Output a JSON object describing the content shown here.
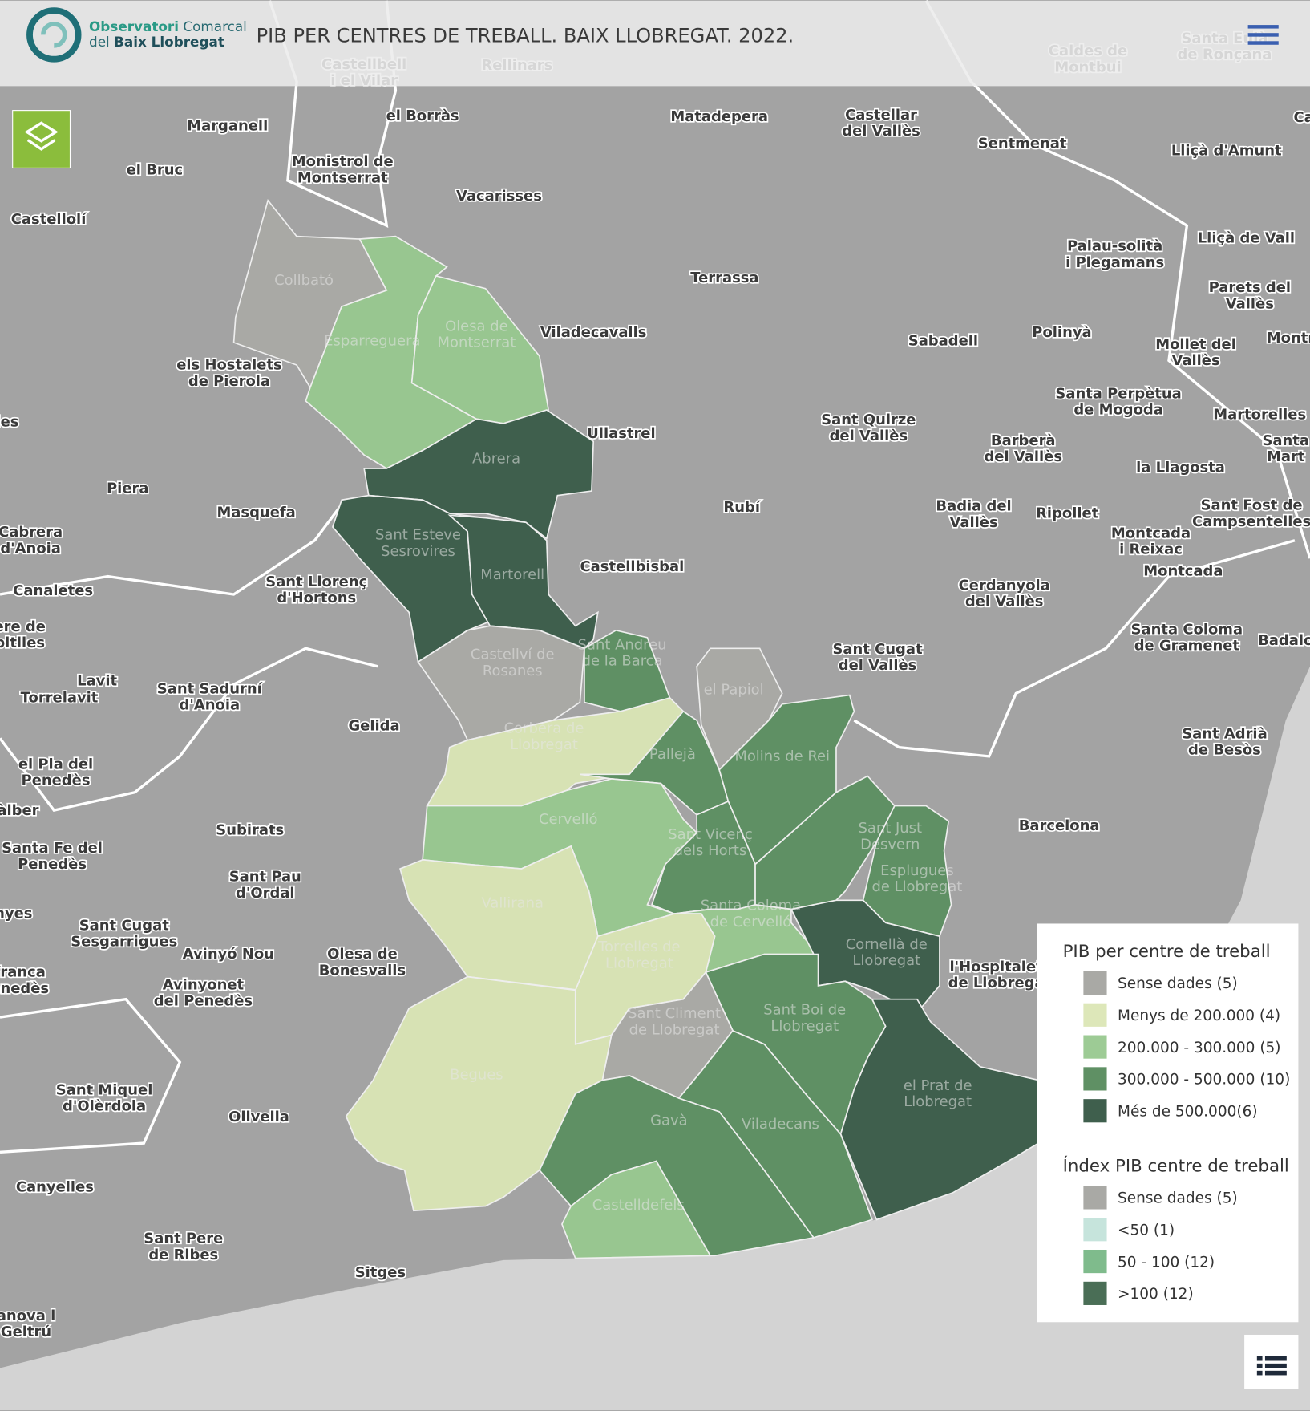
{
  "header": {
    "logo": {
      "line1": [
        "Observatori",
        "Comarcal"
      ],
      "line2": [
        "del",
        "Baix Llobregat"
      ]
    },
    "title": "PIB PER CENTRES DE TREBALL. BAIX LLOBREGAT. 2022."
  },
  "places": [
    [
      "Castellbell",
      "i el Vilar"
    ],
    [
      "Rellinars"
    ],
    [
      "Caldes de",
      "Montbui"
    ],
    [
      "Santa Eulà",
      "de Ronçana"
    ],
    [
      "Marganell"
    ],
    [
      "el Borràs"
    ],
    [
      "Matadepera"
    ],
    [
      "Castellar",
      "del Vallès"
    ],
    [
      "Sentmenat"
    ],
    [
      "Lliçà d'Amunt"
    ],
    [
      "el Bruc"
    ],
    [
      "Monistrol de",
      "Montserrat"
    ],
    [
      "Vacarisses"
    ],
    [
      "Castellolí"
    ],
    [
      "Lliçà de Vall"
    ],
    [
      "Palau-solità",
      "i Plegamans"
    ],
    [
      "Terrassa"
    ],
    [
      "Parets del",
      "Vallès"
    ],
    [
      "Viladecavalls"
    ],
    [
      "Sabadell"
    ],
    [
      "Polinyà"
    ],
    [
      "Mollet del",
      "Vallès"
    ],
    [
      "Montm"
    ],
    [
      "els Hostalets",
      "de Pierola"
    ],
    [
      "les"
    ],
    [
      "Santa Perpètua",
      "de Mogoda"
    ],
    [
      "Martorelles"
    ],
    [
      "Sant Quirze",
      "del Vallès"
    ],
    [
      "Ullastrel"
    ],
    [
      "Barberà",
      "del Vallès"
    ],
    [
      "Santa",
      "Mart"
    ],
    [
      "la Llagosta"
    ],
    [
      "Piera"
    ],
    [
      "Masquefa"
    ],
    [
      "Rubí"
    ],
    [
      "Badia del",
      "Vallès"
    ],
    [
      "Ripollet"
    ],
    [
      "Sant Fost de",
      "Campsentelles"
    ],
    [
      "Cabrera",
      "d'Anoia"
    ],
    [
      "Montcada",
      "i Reixac"
    ],
    [
      "Montcada"
    ],
    [
      "Castellbisbal"
    ],
    [
      "Canaletes"
    ],
    [
      "Sant Llorenç",
      "d'Hortons"
    ],
    [
      "Cerdanyola",
      "del Vallès"
    ],
    [
      "ere de",
      "bitlles"
    ],
    [
      "Santa Coloma",
      "de Gramenet"
    ],
    [
      "Badalo"
    ],
    [
      "Sant Cugat",
      "del Vallès"
    ],
    [
      "Lavit"
    ],
    [
      "Torrelavit"
    ],
    [
      "Sant Sadurní",
      "d'Anoia"
    ],
    [
      "Gelida"
    ],
    [
      "Sant Adrià",
      "de Besòs"
    ],
    [
      "el Pla del",
      "Penedès"
    ],
    [
      "àlber"
    ],
    [
      "Barcelona"
    ],
    [
      "Subirats"
    ],
    [
      "Santa Fe del",
      "Penedès"
    ],
    [
      "Sant Pau",
      "d'Ordal"
    ],
    [
      "nyes"
    ],
    [
      "Sant Cugat",
      "Sesgarrigues"
    ],
    [
      "Avinyó Nou"
    ],
    [
      "Olesa de",
      "Bonesvalls"
    ],
    [
      "franca",
      "enedès"
    ],
    [
      "Avinyonet",
      "del Penedès"
    ],
    [
      "l'Hospitalet",
      "de Llobrega"
    ],
    [
      "Sant Miquel",
      "d'Olèrdola"
    ],
    [
      "Olivella"
    ],
    [
      "Canyelles"
    ],
    [
      "Sant Pere",
      "de Ribes"
    ],
    [
      "Sitges"
    ],
    [
      "anova i",
      "Geltrú"
    ],
    [
      "Ca"
    ]
  ],
  "municipalities": [
    [
      "Collbató"
    ],
    [
      "Esparreguera"
    ],
    [
      "Olesa de",
      "Montserrat"
    ],
    [
      "Abrera"
    ],
    [
      "Sant Esteve",
      "Sesrovires"
    ],
    [
      "Martorell"
    ],
    [
      "Castellví de",
      "Rosanes"
    ],
    [
      "Sant Andreu",
      "de la Barca"
    ],
    [
      "el Papiol"
    ],
    [
      "Corbera de",
      "Llobregat"
    ],
    [
      "Pallejà"
    ],
    [
      "Molins de Rei"
    ],
    [
      "Cervelló"
    ],
    [
      "Sant Vicenç",
      "dels Horts"
    ],
    [
      "Sant Just",
      "Desvern"
    ],
    [
      "Esplugues",
      "de Llobregat"
    ],
    [
      "Vallirana"
    ],
    [
      "Santa Coloma",
      "de Cervelló"
    ],
    [
      "Torrelles de",
      "Llobregat"
    ],
    [
      "Cornellà de",
      "Llobregat"
    ],
    [
      "Sant Boi de",
      "Llobregat"
    ],
    [
      "Sant Climent",
      "de Llobregat"
    ],
    [
      "Begues"
    ],
    [
      "el Prat de",
      "Llobregat"
    ],
    [
      "Gavà"
    ],
    [
      "Viladecans"
    ],
    [
      "Castelldefels"
    ]
  ],
  "legend": [
    {
      "title": "PIB per centre de treball",
      "items": [
        {
          "label": "Sense dades (5)",
          "color": "#a9a9a5"
        },
        {
          "label": "Menys de 200.000 (4)",
          "color": "#dde7b9"
        },
        {
          "label": "200.000 - 300.000 (5)",
          "color": "#9dcb95"
        },
        {
          "label": "300.000 - 500.000 (10)",
          "color": "#5f9064"
        },
        {
          "label": "Més de 500.000(6)",
          "color": "#3f5f4d"
        }
      ]
    },
    {
      "title": "Índex PIB centre de treball",
      "items": [
        {
          "label": "Sense dades (5)",
          "color": "#a9a9a5"
        },
        {
          "label": "<50 (1)",
          "color": "#c6e4dc"
        },
        {
          "label": "50 - 100 (12)",
          "color": "#7fbb8c"
        },
        {
          "label": ">100 (12)",
          "color": "#4a6e56"
        }
      ]
    }
  ]
}
